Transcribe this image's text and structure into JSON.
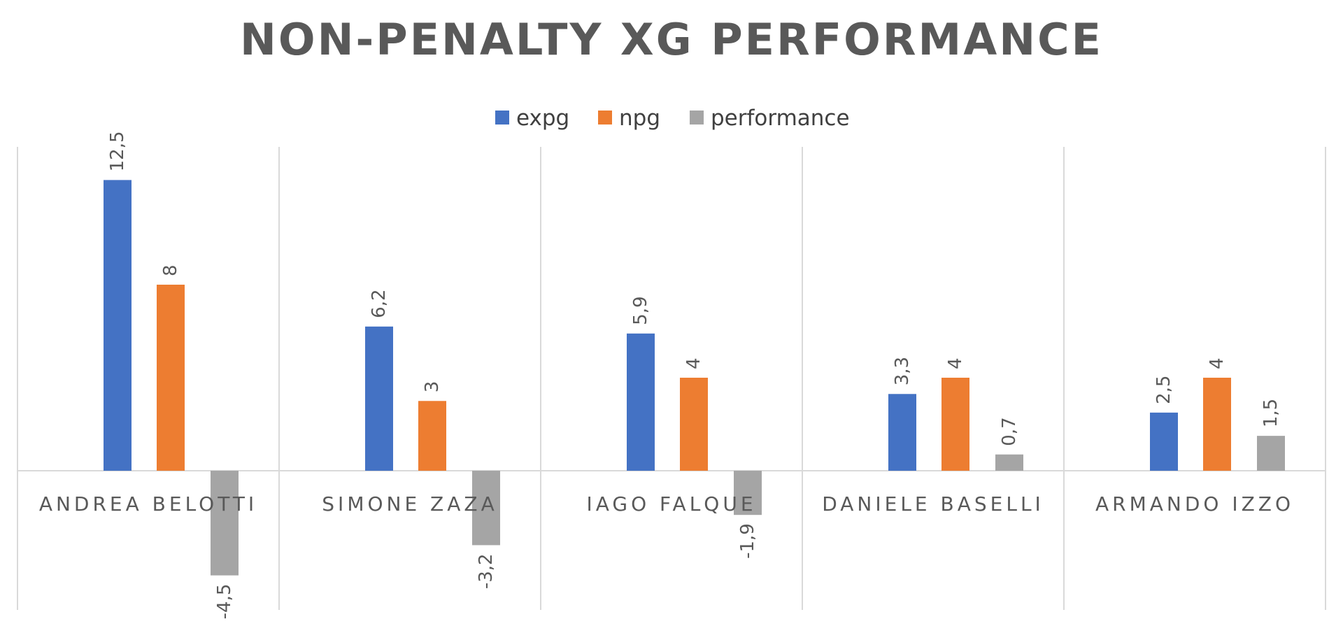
{
  "chart_data": {
    "type": "bar",
    "title": "NON-PENALTY XG PERFORMANCE",
    "categories": [
      "ANDREA BELOTTI",
      "SIMONE ZAZA",
      "IAGO FALQUE",
      "DANIELE BASELLI",
      "ARMANDO IZZO"
    ],
    "series": [
      {
        "name": "expg",
        "color": "#4472C4",
        "values": [
          12.5,
          6.2,
          5.9,
          3.3,
          2.5
        ],
        "labels": [
          "12,5",
          "6,2",
          "5,9",
          "3,3",
          "2,5"
        ]
      },
      {
        "name": "npg",
        "color": "#ED7D31",
        "values": [
          8,
          3,
          4,
          4,
          4
        ],
        "labels": [
          "8",
          "3",
          "4",
          "4",
          "4"
        ]
      },
      {
        "name": "performance",
        "color": "#A5A5A5",
        "values": [
          -4.5,
          -3.2,
          -1.9,
          0.7,
          1.5
        ],
        "labels": [
          "-4,5",
          "-3,2",
          "-1,9",
          "0,7",
          "1,5"
        ]
      }
    ],
    "ylim": [
      -6,
      14
    ],
    "legend_position": "top",
    "grid": "vertical category separators"
  }
}
